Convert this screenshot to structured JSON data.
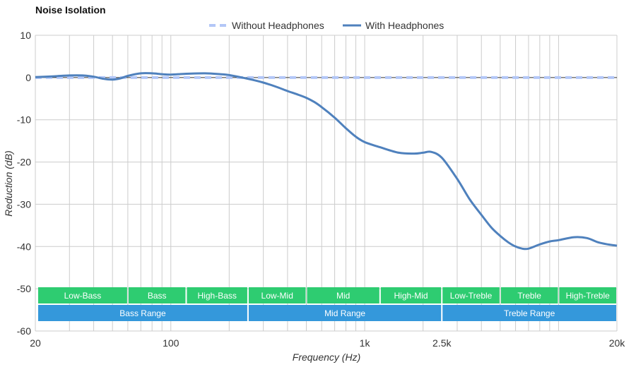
{
  "chart_data": {
    "type": "line",
    "title": "Noise Isolation",
    "xlabel": "Frequency (Hz)",
    "ylabel": "Reduction (dB)",
    "x_scale": "log",
    "xlim": [
      20,
      20000
    ],
    "ylim": [
      -60,
      10
    ],
    "y_ticks": [
      10,
      0,
      -10,
      -20,
      -30,
      -40,
      -50,
      -60
    ],
    "x_ticks": [
      {
        "value": 20,
        "label": "20"
      },
      {
        "value": 100,
        "label": "100"
      },
      {
        "value": 1000,
        "label": "1k"
      },
      {
        "value": 2500,
        "label": "2.5k"
      },
      {
        "value": 20000,
        "label": "20k"
      }
    ],
    "grid": true,
    "legend_position": "top-center",
    "series": [
      {
        "name": "Without Headphones",
        "color": "#b3c7f7",
        "style": "dashed",
        "x": [
          20,
          20000
        ],
        "y": [
          0,
          0
        ]
      },
      {
        "name": "With Headphones",
        "color": "#4f81bd",
        "style": "solid",
        "x": [
          20,
          25,
          30,
          35,
          40,
          45,
          50,
          55,
          60,
          70,
          80,
          90,
          100,
          120,
          150,
          180,
          200,
          250,
          300,
          350,
          400,
          450,
          500,
          550,
          600,
          700,
          800,
          900,
          1000,
          1200,
          1500,
          1800,
          2000,
          2200,
          2500,
          3000,
          3500,
          4000,
          4500,
          5000,
          5500,
          6000,
          6500,
          7000,
          8000,
          9000,
          10000,
          12000,
          14000,
          16000,
          18000,
          20000
        ],
        "y": [
          0.1,
          0.3,
          0.5,
          0.5,
          0.2,
          -0.3,
          -0.5,
          -0.2,
          0.4,
          1.0,
          1.0,
          0.8,
          0.7,
          0.9,
          1.0,
          0.8,
          0.6,
          -0.3,
          -1.2,
          -2.2,
          -3.2,
          -4.0,
          -4.8,
          -5.8,
          -7.0,
          -9.5,
          -12.0,
          -14.0,
          -15.3,
          -16.5,
          -17.8,
          -18.0,
          -17.8,
          -17.6,
          -19.0,
          -24.0,
          -29.0,
          -32.5,
          -35.5,
          -37.5,
          -39.0,
          -40.0,
          -40.5,
          -40.5,
          -39.5,
          -38.8,
          -38.5,
          -37.8,
          -38.0,
          -39.0,
          -39.5,
          -39.8
        ]
      }
    ],
    "bands": [
      [
        {
          "label": "Low-Bass",
          "from": 20,
          "to": 60,
          "color": "#2ecc71"
        },
        {
          "label": "Bass",
          "from": 60,
          "to": 120,
          "color": "#2ecc71"
        },
        {
          "label": "High-Bass",
          "from": 120,
          "to": 250,
          "color": "#2ecc71"
        },
        {
          "label": "Low-Mid",
          "from": 250,
          "to": 500,
          "color": "#2ecc71"
        },
        {
          "label": "Mid",
          "from": 500,
          "to": 1200,
          "color": "#2ecc71"
        },
        {
          "label": "High-Mid",
          "from": 1200,
          "to": 2500,
          "color": "#2ecc71"
        },
        {
          "label": "Low-Treble",
          "from": 2500,
          "to": 5000,
          "color": "#2ecc71"
        },
        {
          "label": "Treble",
          "from": 5000,
          "to": 10000,
          "color": "#2ecc71"
        },
        {
          "label": "High-Treble",
          "from": 10000,
          "to": 20000,
          "color": "#2ecc71"
        }
      ],
      [
        {
          "label": "Bass Range",
          "from": 20,
          "to": 250,
          "color": "#3498db"
        },
        {
          "label": "Mid Range",
          "from": 250,
          "to": 2500,
          "color": "#3498db"
        },
        {
          "label": "Treble Range",
          "from": 2500,
          "to": 20000,
          "color": "#3498db"
        }
      ]
    ]
  }
}
